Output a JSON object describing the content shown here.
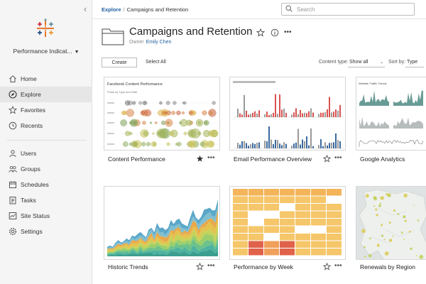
{
  "sidebar": {
    "site_name": "Performance Indicat...",
    "items": [
      {
        "key": "home",
        "label": "Home",
        "icon": "home-icon"
      },
      {
        "key": "explore",
        "label": "Explore",
        "icon": "compass-icon",
        "active": true
      },
      {
        "key": "favorites",
        "label": "Favorites",
        "icon": "star-icon"
      },
      {
        "key": "recents",
        "label": "Recents",
        "icon": "clock-icon"
      }
    ],
    "admin_items": [
      {
        "key": "users",
        "label": "Users",
        "icon": "users-icon"
      },
      {
        "key": "groups",
        "label": "Groups",
        "icon": "groups-icon"
      },
      {
        "key": "schedules",
        "label": "Schedules",
        "icon": "calendar-icon"
      },
      {
        "key": "tasks",
        "label": "Tasks",
        "icon": "tasks-icon"
      },
      {
        "key": "site-status",
        "label": "Site Status",
        "icon": "status-icon"
      },
      {
        "key": "settings",
        "label": "Settings",
        "icon": "gear-icon"
      }
    ]
  },
  "breadcrumb": {
    "root": "Explore",
    "separator": "/",
    "current": "Campaigns and Retention"
  },
  "search": {
    "placeholder": "Search",
    "value": ""
  },
  "header": {
    "title": "Campaigns and Retention",
    "owner_label": "Owner",
    "owner_name": "Emily Chen"
  },
  "toolbar": {
    "create_label": "Create",
    "select_all_label": "Select All",
    "content_type_label": "Content type:",
    "content_type_value": "Show all",
    "sort_label": "Sort by:",
    "sort_value": "Type"
  },
  "cards": [
    {
      "name": "Content Performance",
      "favorite": true,
      "thumb_title": "Facebook Content Performance",
      "thumb_subtitle": "Posts by Type and Date"
    },
    {
      "name": "Email Performance Overview",
      "favorite": false
    },
    {
      "name": "Google Analytics",
      "favorite": false,
      "thumb_title": "Website Traffic Trends"
    },
    {
      "name": "Historic Trends",
      "favorite": false
    },
    {
      "name": "Performance by Week",
      "favorite": false
    },
    {
      "name": "Renewals by Region",
      "favorite": false
    }
  ],
  "more_symbol": "•••",
  "colors": {
    "accent": "#1f5f9e",
    "email_red": "#d9534f",
    "email_blue": "#3b6a9e",
    "heat_yellow": "#f5c66a",
    "heat_red": "#e0624a",
    "analytics_green": "#4f8a83"
  }
}
